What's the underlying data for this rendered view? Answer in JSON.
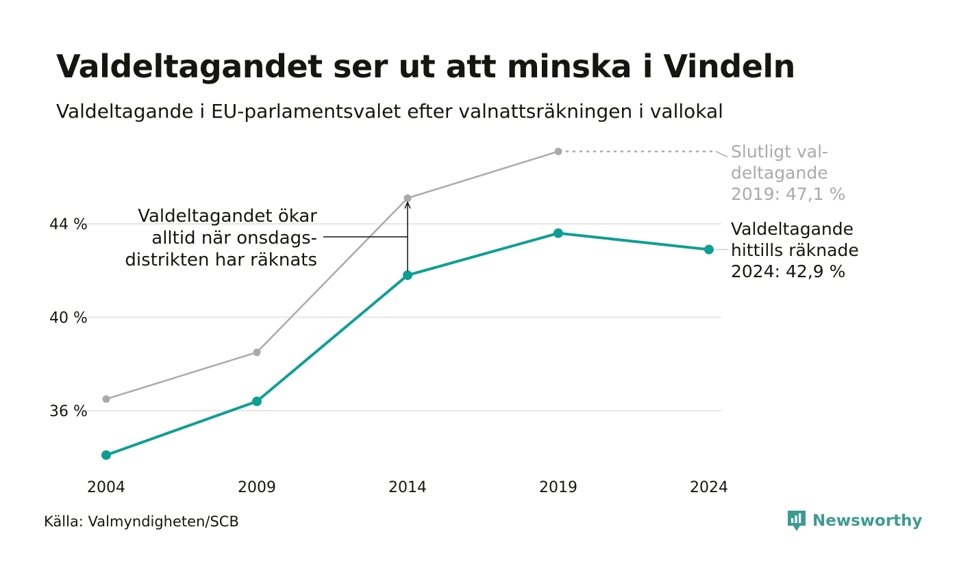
{
  "title": "Valdeltagandet ser ut att minska i Vindeln",
  "subtitle": "Valdeltagande i EU-parlamentsvalet efter valnattsräkningen i vallokal",
  "source": "Källa: Valmyndigheten/SCB",
  "brand": "Newsworthy",
  "colors": {
    "counted": "#0e9f94",
    "final": "#aaaaaa",
    "grid": "#e6e6e6",
    "text": "#15160f"
  },
  "chart_data": {
    "type": "line",
    "x": [
      2004,
      2009,
      2014,
      2019,
      2024
    ],
    "series": [
      {
        "key": "final",
        "values": [
          36.5,
          38.5,
          45.1,
          47.1,
          null
        ]
      },
      {
        "key": "counted",
        "values": [
          34.1,
          36.4,
          41.8,
          43.6,
          42.9
        ]
      }
    ],
    "ylim": [
      33.0,
      48.5
    ],
    "yticks": [
      36,
      40,
      44
    ],
    "ytick_labels": [
      "36 %",
      "40 %",
      "44 %"
    ],
    "xtick_labels": [
      "2004",
      "2009",
      "2014",
      "2019",
      "2024"
    ],
    "grid": true,
    "annotations": {
      "final_label": [
        "Slutligt val-",
        "deltagande",
        "2019: 47,1 %"
      ],
      "counted_label": [
        "Valdeltagande",
        "hittills räknade",
        "2024: 42,9 %"
      ],
      "increase_note": [
        "Valdeltagandet ökar",
        "alltid när onsdags-",
        "distrikten har räknats"
      ]
    }
  }
}
